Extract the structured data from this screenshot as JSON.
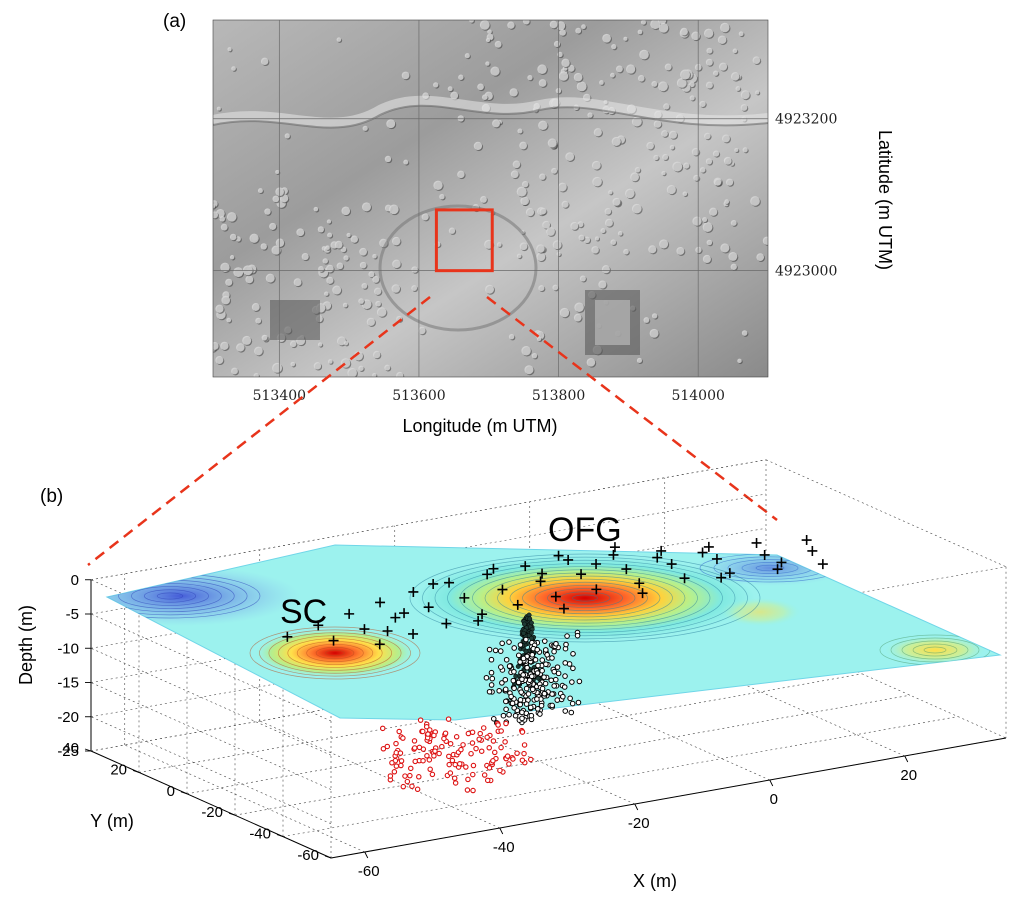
{
  "figure": {
    "panel_a_label": "(a)",
    "panel_b_label": "(b)"
  },
  "chart_data": [
    {
      "type": "map",
      "panel": "(a)",
      "description_visible": "shaded-relief LiDAR hillshade with UTM grid",
      "xlabel": "Longitude (m UTM)",
      "ylabel": "Latitude (m UTM)",
      "xticks": [
        "513400",
        "513600",
        "513800",
        "514000"
      ],
      "xtick_values": [
        513400,
        513600,
        513800,
        514000
      ],
      "yticks": [
        "4923200",
        "4923000"
      ],
      "ytick_values": [
        4923200,
        4923000
      ],
      "xlim": [
        513305,
        514100
      ],
      "ylim": [
        4922860,
        4923330
      ],
      "highlight_box": {
        "x": [
          513625,
          513705
        ],
        "y": [
          4923000,
          4923080
        ],
        "color": "#e8341b"
      }
    },
    {
      "type": "scatter",
      "panel": "(b)",
      "xlabel": "X (m)",
      "ylabel": "Y (m)",
      "zlabel": "Depth (m)",
      "xticks": [
        "-60",
        "-40",
        "-20",
        "0",
        "20"
      ],
      "xtick_values": [
        -60,
        -40,
        -20,
        0,
        20
      ],
      "yticks": [
        "40",
        "20",
        "0",
        "-20",
        "-40",
        "-60"
      ],
      "ytick_values": [
        40,
        20,
        0,
        -20,
        -40,
        -60
      ],
      "zticks": [
        "0",
        "-5",
        "-10",
        "-15",
        "-20",
        "-25"
      ],
      "ztick_values": [
        0,
        -5,
        -10,
        -15,
        -20,
        -25
      ],
      "xlim": [
        -65,
        35
      ],
      "ylim": [
        -60,
        40
      ],
      "zlim": [
        -25,
        0
      ],
      "grid": true,
      "annotations": [
        "OFG",
        "SC"
      ],
      "surface": {
        "depth": -6,
        "colormap": "jet contour"
      },
      "series": [
        {
          "marker": "+",
          "color": "#000000",
          "points": [
            [
              -48,
              6
            ],
            [
              -42,
              10
            ],
            [
              -36,
              14
            ],
            [
              -30,
              18
            ],
            [
              -24,
              21
            ],
            [
              -18,
              23
            ],
            [
              -12,
              24
            ],
            [
              -6,
              25
            ],
            [
              0,
              24
            ],
            [
              6,
              22
            ],
            [
              12,
              19
            ],
            [
              18,
              16
            ],
            [
              24,
              13
            ],
            [
              30,
              9
            ],
            [
              -44,
              -2
            ],
            [
              -38,
              2
            ],
            [
              -32,
              6
            ],
            [
              -26,
              9
            ],
            [
              -20,
              11
            ],
            [
              -14,
              12
            ],
            [
              -8,
              13
            ],
            [
              -2,
              13
            ],
            [
              4,
              11
            ],
            [
              10,
              9
            ],
            [
              16,
              7
            ],
            [
              22,
              4
            ],
            [
              28,
              1
            ],
            [
              -40,
              -10
            ],
            [
              -34,
              -7
            ],
            [
              -28,
              -4
            ],
            [
              -22,
              -2
            ],
            [
              -16,
              0
            ],
            [
              -10,
              1
            ],
            [
              -4,
              1
            ],
            [
              2,
              0
            ],
            [
              8,
              -2
            ],
            [
              14,
              -4
            ],
            [
              20,
              -7
            ],
            [
              26,
              -9
            ],
            [
              -20,
              24
            ],
            [
              -10,
              27
            ],
            [
              0,
              28
            ],
            [
              8,
              27
            ],
            [
              -6,
              18
            ],
            [
              2,
              18
            ],
            [
              10,
              15
            ],
            [
              -30,
              8
            ],
            [
              16,
              13
            ],
            [
              -36,
              -2
            ],
            [
              -24,
              -6
            ],
            [
              -12,
              -8
            ],
            [
              0,
              -7
            ],
            [
              12,
              -6
            ],
            [
              22,
              -3
            ]
          ]
        },
        {
          "marker": "circle",
          "color": "#000000",
          "depth": [
            -10,
            -22
          ],
          "points": [
            [
              -16,
              -4
            ],
            [
              -18,
              -6
            ],
            [
              -14,
              -2
            ],
            [
              -15,
              -8
            ],
            [
              -17,
              -3
            ],
            [
              -13,
              -6
            ],
            [
              -19,
              -7
            ],
            [
              -12,
              -4
            ]
          ]
        },
        {
          "marker": "circle",
          "color": "#dd1111",
          "depth": [
            -18,
            -25
          ],
          "points": [
            [
              -34,
              -10
            ],
            [
              -36,
              -14
            ],
            [
              -32,
              -18
            ],
            [
              -38,
              -20
            ],
            [
              -30,
              -22
            ],
            [
              -35,
              -26
            ],
            [
              -40,
              -24
            ],
            [
              -28,
              -28
            ],
            [
              -33,
              -30
            ],
            [
              -26,
              -20
            ]
          ]
        }
      ]
    }
  ]
}
